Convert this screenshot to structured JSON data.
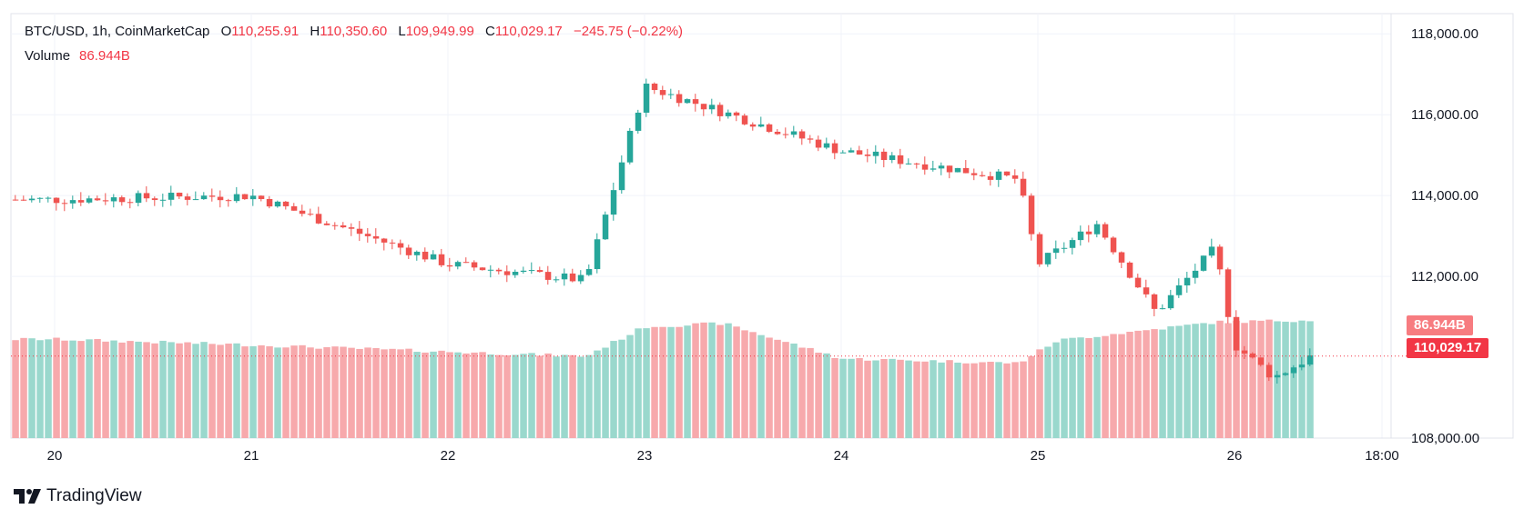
{
  "legend": {
    "symbol": "BTC/USD, 1h, CoinMarketCap",
    "open_label": "O",
    "open": "110,255.91",
    "high_label": "H",
    "high": "110,350.60",
    "low_label": "L",
    "low": "109,949.99",
    "close_label": "C",
    "close": "110,029.17",
    "change": "−245.75 (−0.22%)",
    "volume_label": "Volume",
    "volume": "86.944B"
  },
  "price_tag": "110,029.17",
  "volume_tag": "86.944B",
  "brand": "TradingView",
  "colors": {
    "up": "#26a69a",
    "down": "#ef5350",
    "vol_up": "#9ad8cd",
    "vol_down": "#f7a9ac",
    "grid": "#f0f3fa",
    "text": "#131722"
  },
  "chart_data": {
    "type": "candlestick",
    "title": "BTC/USD, 1h, CoinMarketCap",
    "interval": "1h",
    "y_ticks": [
      "118,000.00",
      "116,000.00",
      "114,000.00",
      "112,000.00",
      "108,000.00"
    ],
    "y_tick_values": [
      118000,
      116000,
      114000,
      112000,
      108000
    ],
    "ylim": [
      108000,
      118500
    ],
    "x_ticks": [
      "20",
      "21",
      "22",
      "23",
      "24",
      "25",
      "26",
      "18:00"
    ],
    "last_price": 110029.17,
    "last_volume": "86.944B",
    "grid": true,
    "anchors": [
      {
        "day": "20",
        "price": 113900
      },
      {
        "day": "21",
        "price": 114000
      },
      {
        "day": "22",
        "price": 112300
      },
      {
        "day": "22.7",
        "price": 111900
      },
      {
        "day": "23",
        "price": 116700
      },
      {
        "day": "24",
        "price": 115100
      },
      {
        "day": "24.9",
        "price": 114400
      },
      {
        "day": "25",
        "price": 112300
      },
      {
        "day": "25.3",
        "price": 113300
      },
      {
        "day": "25.6",
        "price": 111100
      },
      {
        "day": "25.9",
        "price": 112700
      },
      {
        "day": "26",
        "price": 110300
      },
      {
        "day": "26.2",
        "price": 109500
      },
      {
        "day": "26.4",
        "price": 110050
      }
    ],
    "volume_anchors_billion": [
      {
        "day": "20",
        "value": 87
      },
      {
        "day": "21",
        "value": 82
      },
      {
        "day": "22",
        "value": 76
      },
      {
        "day": "22.7",
        "value": 72
      },
      {
        "day": "23",
        "value": 98
      },
      {
        "day": "23.4",
        "value": 101
      },
      {
        "day": "24",
        "value": 70
      },
      {
        "day": "24.9",
        "value": 66
      },
      {
        "day": "25.1",
        "value": 86
      },
      {
        "day": "25.9",
        "value": 102
      },
      {
        "day": "26.4",
        "value": 104
      }
    ]
  }
}
